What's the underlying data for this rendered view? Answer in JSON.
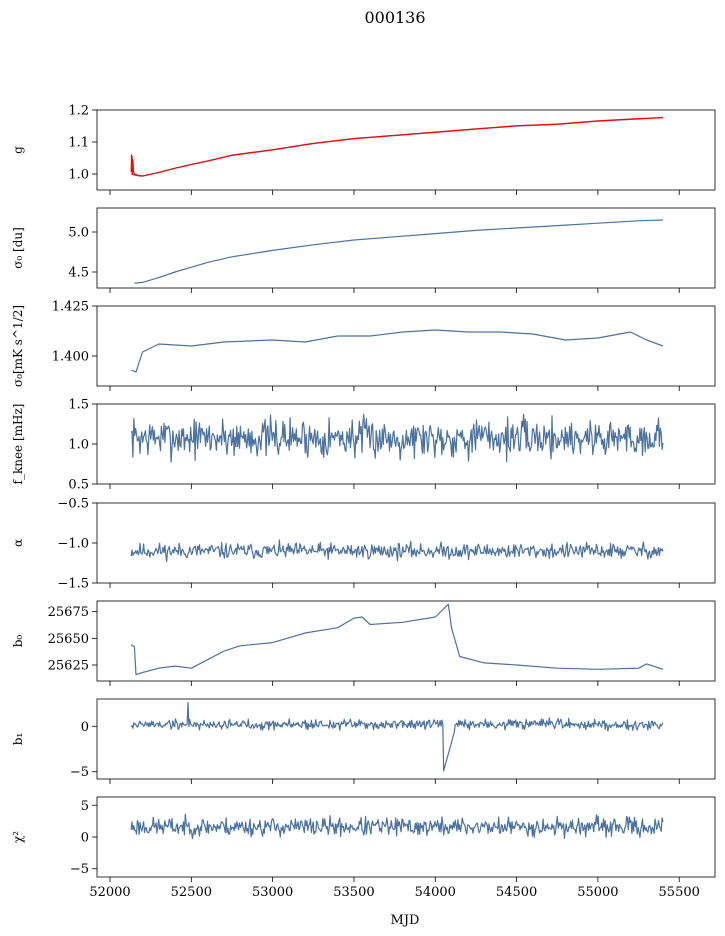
{
  "figure": {
    "title": "000136",
    "xlabel": "MJD"
  },
  "chart_data": [
    {
      "type": "line",
      "ylabel": "g",
      "xlim": [
        51920,
        55720
      ],
      "ylim": [
        0.95,
        1.2
      ],
      "yticks": [
        1.0,
        1.1,
        1.2
      ],
      "ytick_labels": [
        "1.0",
        "1.1",
        "1.2"
      ],
      "series": [
        {
          "color": "#4c72a0",
          "x": [
            52130,
            52150,
            52180,
            52200,
            52300,
            52400,
            52500,
            52600,
            52750,
            53000,
            53250,
            53500,
            53750,
            54000,
            54250,
            54500,
            54750,
            55000,
            55250,
            55400
          ],
          "y": [
            1.0,
            0.997,
            0.994,
            0.993,
            1.005,
            1.018,
            1.03,
            1.04,
            1.058,
            1.075,
            1.095,
            1.11,
            1.12,
            1.13,
            1.14,
            1.15,
            1.155,
            1.165,
            1.172,
            1.177
          ]
        },
        {
          "color": "#ff0000",
          "x": [
            52130,
            52132,
            52134,
            52136,
            52138,
            52140,
            52145,
            52150,
            52160,
            52170,
            52180,
            52200,
            52300,
            52400,
            52500,
            52600,
            52750,
            53000,
            53250,
            53500,
            53750,
            54000,
            54250,
            54500,
            54750,
            55000,
            55250,
            55400
          ],
          "y": [
            1.005,
            1.06,
            1.01,
            1.055,
            1.0,
            1.045,
            1.005,
            1.0,
            0.998,
            0.996,
            0.995,
            0.994,
            1.005,
            1.018,
            1.03,
            1.041,
            1.059,
            1.076,
            1.096,
            1.111,
            1.121,
            1.131,
            1.141,
            1.151,
            1.156,
            1.166,
            1.173,
            1.176
          ]
        }
      ]
    },
    {
      "type": "line",
      "ylabel": "σ₀ [du]",
      "xlim": [
        51920,
        55720
      ],
      "ylim": [
        4.3,
        5.3
      ],
      "yticks": [
        4.5,
        5.0
      ],
      "ytick_labels": [
        "4.5",
        "5.0"
      ],
      "series": [
        {
          "color": "#4c72a0",
          "x": [
            52150,
            52200,
            52300,
            52400,
            52500,
            52600,
            52750,
            53000,
            53250,
            53500,
            53750,
            54000,
            54250,
            54500,
            54750,
            55000,
            55250,
            55400
          ],
          "y": [
            4.36,
            4.37,
            4.43,
            4.5,
            4.56,
            4.62,
            4.69,
            4.77,
            4.84,
            4.9,
            4.94,
            4.98,
            5.02,
            5.05,
            5.08,
            5.11,
            5.14,
            5.15
          ]
        }
      ]
    },
    {
      "type": "line",
      "ylabel": "σ₀[mK s^1/2]",
      "xlim": [
        51920,
        55720
      ],
      "ylim": [
        1.385,
        1.425
      ],
      "yticks": [
        1.4,
        1.425
      ],
      "ytick_labels": [
        "1.400",
        "1.425"
      ],
      "series": [
        {
          "color": "#4c72a0",
          "x": [
            52130,
            52160,
            52200,
            52300,
            52500,
            52700,
            53000,
            53200,
            53400,
            53600,
            53800,
            54000,
            54200,
            54400,
            54600,
            54800,
            55000,
            55200,
            55300,
            55400
          ],
          "y": [
            1.393,
            1.392,
            1.402,
            1.406,
            1.405,
            1.407,
            1.408,
            1.407,
            1.41,
            1.41,
            1.412,
            1.413,
            1.412,
            1.412,
            1.411,
            1.408,
            1.409,
            1.412,
            1.408,
            1.405
          ]
        }
      ]
    },
    {
      "type": "line",
      "ylabel": "f_knee [mHz]",
      "xlim": [
        51920,
        55720
      ],
      "ylim": [
        0.5,
        1.5
      ],
      "yticks": [
        0.5,
        1.0,
        1.5
      ],
      "ytick_labels": [
        "0.5",
        "1.0",
        "1.5"
      ],
      "series": [
        {
          "color": "#4c72a0",
          "x_range": [
            52130,
            55400
          ],
          "base": 1.08,
          "noise": 0.15,
          "seed": 7
        }
      ]
    },
    {
      "type": "line",
      "ylabel": "α",
      "xlim": [
        51920,
        55720
      ],
      "ylim": [
        -1.5,
        -0.5
      ],
      "yticks": [
        -1.5,
        -1.0,
        -0.5
      ],
      "ytick_labels": [
        "−1.5",
        "−1.0",
        "−0.5"
      ],
      "series": [
        {
          "color": "#4c72a0",
          "x_range": [
            52130,
            55400
          ],
          "base": -1.1,
          "noise": 0.06,
          "seed": 11
        }
      ]
    },
    {
      "type": "line",
      "ylabel": "b₀",
      "xlim": [
        51920,
        55720
      ],
      "ylim": [
        25610,
        25685
      ],
      "yticks": [
        25625,
        25650,
        25675
      ],
      "ytick_labels": [
        "25625",
        "25650",
        "25675"
      ],
      "series": [
        {
          "color": "#4c72a0",
          "x": [
            52130,
            52150,
            52160,
            52200,
            52300,
            52400,
            52500,
            52600,
            52700,
            52800,
            53000,
            53200,
            53400,
            53500,
            53550,
            53600,
            53800,
            54000,
            54080,
            54100,
            54150,
            54300,
            54500,
            54750,
            55000,
            55250,
            55300,
            55400
          ],
          "y": [
            25644,
            25642,
            25616,
            25618,
            25622,
            25624,
            25622,
            25630,
            25638,
            25643,
            25646,
            25655,
            25660,
            25669,
            25670,
            25663,
            25665,
            25670,
            25682,
            25660,
            25633,
            25627,
            25625,
            25622,
            25621,
            25622,
            25626,
            25621
          ]
        }
      ]
    },
    {
      "type": "line",
      "ylabel": "b₁",
      "xlim": [
        51920,
        55720
      ],
      "ylim": [
        -5.8,
        3.0
      ],
      "yticks": [
        -5,
        0
      ],
      "ytick_labels": [
        "−5",
        "0"
      ],
      "series": [
        {
          "color": "#4c72a0",
          "x_range": [
            52130,
            55400
          ],
          "base": 0.2,
          "noise": 0.35,
          "seed": 19
        }
      ]
    },
    {
      "type": "line",
      "ylabel": "χ²",
      "xlim": [
        51920,
        55720
      ],
      "ylim": [
        -6.3,
        6.3
      ],
      "yticks": [
        -5,
        0,
        5
      ],
      "ytick_labels": [
        "−5",
        "0",
        "5"
      ],
      "series": [
        {
          "color": "#4c72a0",
          "x_range": [
            52130,
            55400
          ],
          "base": 1.6,
          "noise": 0.9,
          "seed": 23
        }
      ]
    }
  ],
  "x_axis": {
    "ticks": [
      52000,
      52500,
      53000,
      53500,
      54000,
      54500,
      55000,
      55500
    ],
    "labels": [
      "52000",
      "52500",
      "53000",
      "53500",
      "54000",
      "54500",
      "55000",
      "55500"
    ]
  }
}
